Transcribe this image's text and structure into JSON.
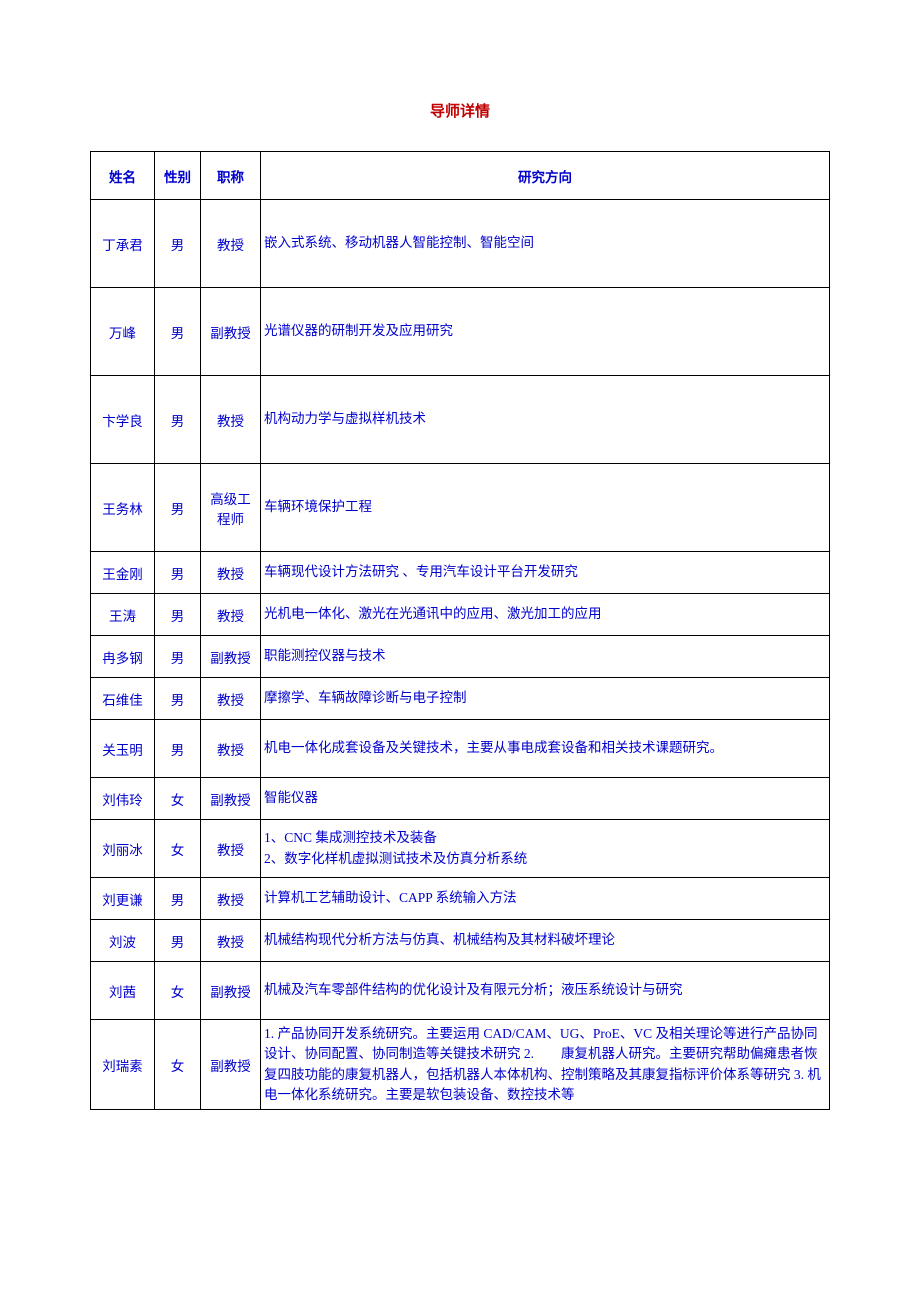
{
  "page": {
    "title": "导师详情"
  },
  "table": {
    "headers": {
      "name": "姓名",
      "gender": "性别",
      "title": "职称",
      "research": "研究方向"
    },
    "rows": [
      {
        "name": "丁承君",
        "gender": "男",
        "title": "教授",
        "research": "嵌入式系统、移动机器人智能控制、智能空间",
        "height": "h-tall"
      },
      {
        "name": "万峰",
        "gender": "男",
        "title": "副教授",
        "research": "光谱仪器的研制开发及应用研究",
        "height": "h-tall"
      },
      {
        "name": "卞学良",
        "gender": "男",
        "title": "教授",
        "research": "机构动力学与虚拟样机技术",
        "height": "h-tall"
      },
      {
        "name": "王务林",
        "gender": "男",
        "title": "高级工程师",
        "research": "车辆环境保护工程",
        "height": "h-tall"
      },
      {
        "name": "王金刚",
        "gender": "男",
        "title": "教授",
        "research": "车辆现代设计方法研究 、专用汽车设计平台开发研究",
        "height": "h-sm"
      },
      {
        "name": "王涛",
        "gender": "男",
        "title": "教授",
        "research": "光机电一体化、激光在光通讯中的应用、激光加工的应用",
        "height": "h-sm"
      },
      {
        "name": "冉多钢",
        "gender": "男",
        "title": "副教授",
        "research": "职能测控仪器与技术",
        "height": "h-sm"
      },
      {
        "name": "石维佳",
        "gender": "男",
        "title": "教授",
        "research": "摩擦学、车辆故障诊断与电子控制",
        "height": "h-sm"
      },
      {
        "name": "关玉明",
        "gender": "男",
        "title": "教授",
        "research": "机电一体化成套设备及关键技术，主要从事电成套设备和相关技术课题研究。",
        "height": "h-med"
      },
      {
        "name": "刘伟玲",
        "gender": "女",
        "title": "副教授",
        "research": "智能仪器",
        "height": "h-sm"
      },
      {
        "name": "刘丽冰",
        "gender": "女",
        "title": "教授",
        "research": "1、CNC 集成测控技术及装备\n2、数字化样机虚拟测试技术及仿真分析系统",
        "height": "h-med"
      },
      {
        "name": "刘更谦",
        "gender": "男",
        "title": "教授",
        "research": "计算机工艺辅助设计、CAPP 系统输入方法",
        "height": "h-sm"
      },
      {
        "name": "刘波",
        "gender": "男",
        "title": "教授",
        "research": "机械结构现代分析方法与仿真、机械结构及其材料破坏理论",
        "height": "h-sm"
      },
      {
        "name": "刘茜",
        "gender": "女",
        "title": "副教授",
        "research": "机械及汽车零部件结构的优化设计及有限元分析；液压系统设计与研究",
        "height": "h-med"
      },
      {
        "name": "刘瑞素",
        "gender": "女",
        "title": "副教授",
        "research": "1. 产品协同开发系统研究。主要运用 CAD/CAM、UG、ProE、VC 及相关理论等进行产品协同设计、协同配置、协同制造等关键技术研究 2.　　康复机器人研究。主要研究帮助偏瘫患者恢复四肢功能的康复机器人，包括机器人本体机构、控制策略及其康复指标评价体系等研究 3. 机电一体化系统研究。主要是软包装设备、数控技术等",
        "height": ""
      }
    ]
  },
  "colors": {
    "title_color": "#c00000",
    "text_color": "#0000cc",
    "border_color": "#000000",
    "background": "#ffffff"
  }
}
